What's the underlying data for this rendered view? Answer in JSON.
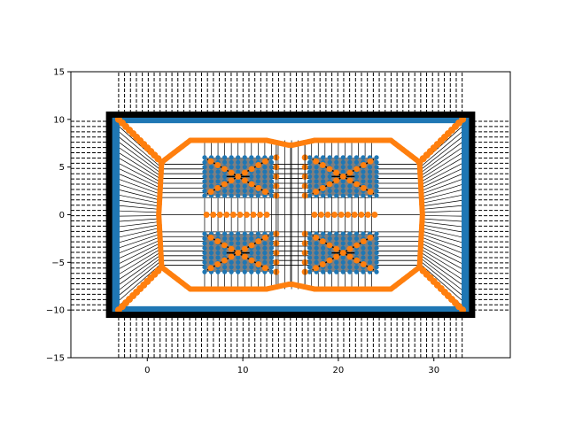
{
  "chart_data": {
    "type": "scatter",
    "title": "",
    "xlabel": "",
    "ylabel": "",
    "xlim": [
      -8,
      38
    ],
    "ylim": [
      -15,
      15
    ],
    "x_ticks": [
      0,
      10,
      20,
      30
    ],
    "y_ticks": [
      -15,
      -10,
      -5,
      0,
      5,
      10,
      15
    ],
    "x_tick_labels": [
      "0",
      "10",
      "20",
      "30"
    ],
    "y_tick_labels": [
      "−15",
      "−10",
      "−5",
      "0",
      "5",
      "10",
      "15"
    ],
    "grid": false,
    "legend": "none",
    "colors": {
      "blue": "#1f77b4",
      "orange": "#ff7f0e",
      "frame": "#000000",
      "dashed": "#000000",
      "grid_lines": "#000000"
    },
    "outer_frame": {
      "x": [
        -4,
        34
      ],
      "y": [
        -10.5,
        10.5
      ]
    },
    "vertical_dashed_region": {
      "x": [
        -3,
        33
      ],
      "y": [
        -15,
        15
      ],
      "spacing": 0.62
    },
    "horizontal_dashed_region_left": {
      "x": [
        -8,
        -3
      ],
      "y": [
        -10,
        10
      ],
      "spacing": 0.55
    },
    "horizontal_dashed_region_right": {
      "x": [
        33,
        38
      ],
      "y": [
        -10,
        10
      ],
      "spacing": 0.55
    },
    "orange_contour": [
      [
        1.5,
        5.5
      ],
      [
        4.5,
        7.8
      ],
      [
        12.5,
        7.8
      ],
      [
        14.8,
        7.3
      ],
      [
        15.2,
        7.3
      ],
      [
        17.5,
        7.8
      ],
      [
        25.5,
        7.8
      ],
      [
        28.5,
        5.5
      ],
      [
        28.8,
        0
      ],
      [
        28.5,
        -5.5
      ],
      [
        25.5,
        -7.8
      ],
      [
        17.5,
        -7.8
      ],
      [
        15.2,
        -7.3
      ],
      [
        14.8,
        -7.3
      ],
      [
        12.5,
        -7.8
      ],
      [
        4.5,
        -7.8
      ],
      [
        1.5,
        -5.5
      ],
      [
        1.2,
        0
      ],
      [
        1.5,
        5.5
      ]
    ],
    "corner_diagonals": [
      [
        [
          -3,
          10
        ],
        [
          1.5,
          5.5
        ]
      ],
      [
        [
          33,
          10
        ],
        [
          28.5,
          5.5
        ]
      ],
      [
        [
          -3,
          -10
        ],
        [
          1.5,
          -5.5
        ]
      ],
      [
        [
          33,
          -10
        ],
        [
          28.5,
          -5.5
        ]
      ]
    ],
    "blocks": [
      {
        "x": [
          6,
          13
        ],
        "y": [
          2,
          6
        ]
      },
      {
        "x": [
          17,
          24
        ],
        "y": [
          2,
          6
        ]
      },
      {
        "x": [
          6,
          13
        ],
        "y": [
          -6,
          -2
        ]
      },
      {
        "x": [
          17,
          24
        ],
        "y": [
          -6,
          -2
        ]
      }
    ],
    "center_row_y": 0,
    "center_row_x": [
      6.2,
      6.9,
      7.6,
      8.3,
      9.0,
      9.7,
      10.4,
      11.1,
      11.8,
      12.5,
      17.5,
      18.2,
      18.9,
      19.6,
      20.3,
      21.0,
      21.7,
      22.4,
      23.1,
      23.8
    ],
    "middle_column_x": [
      13.5,
      16.5
    ],
    "middle_column_y": [
      -6,
      -5,
      -4,
      -3,
      -2,
      2,
      3,
      4,
      5,
      6
    ]
  }
}
